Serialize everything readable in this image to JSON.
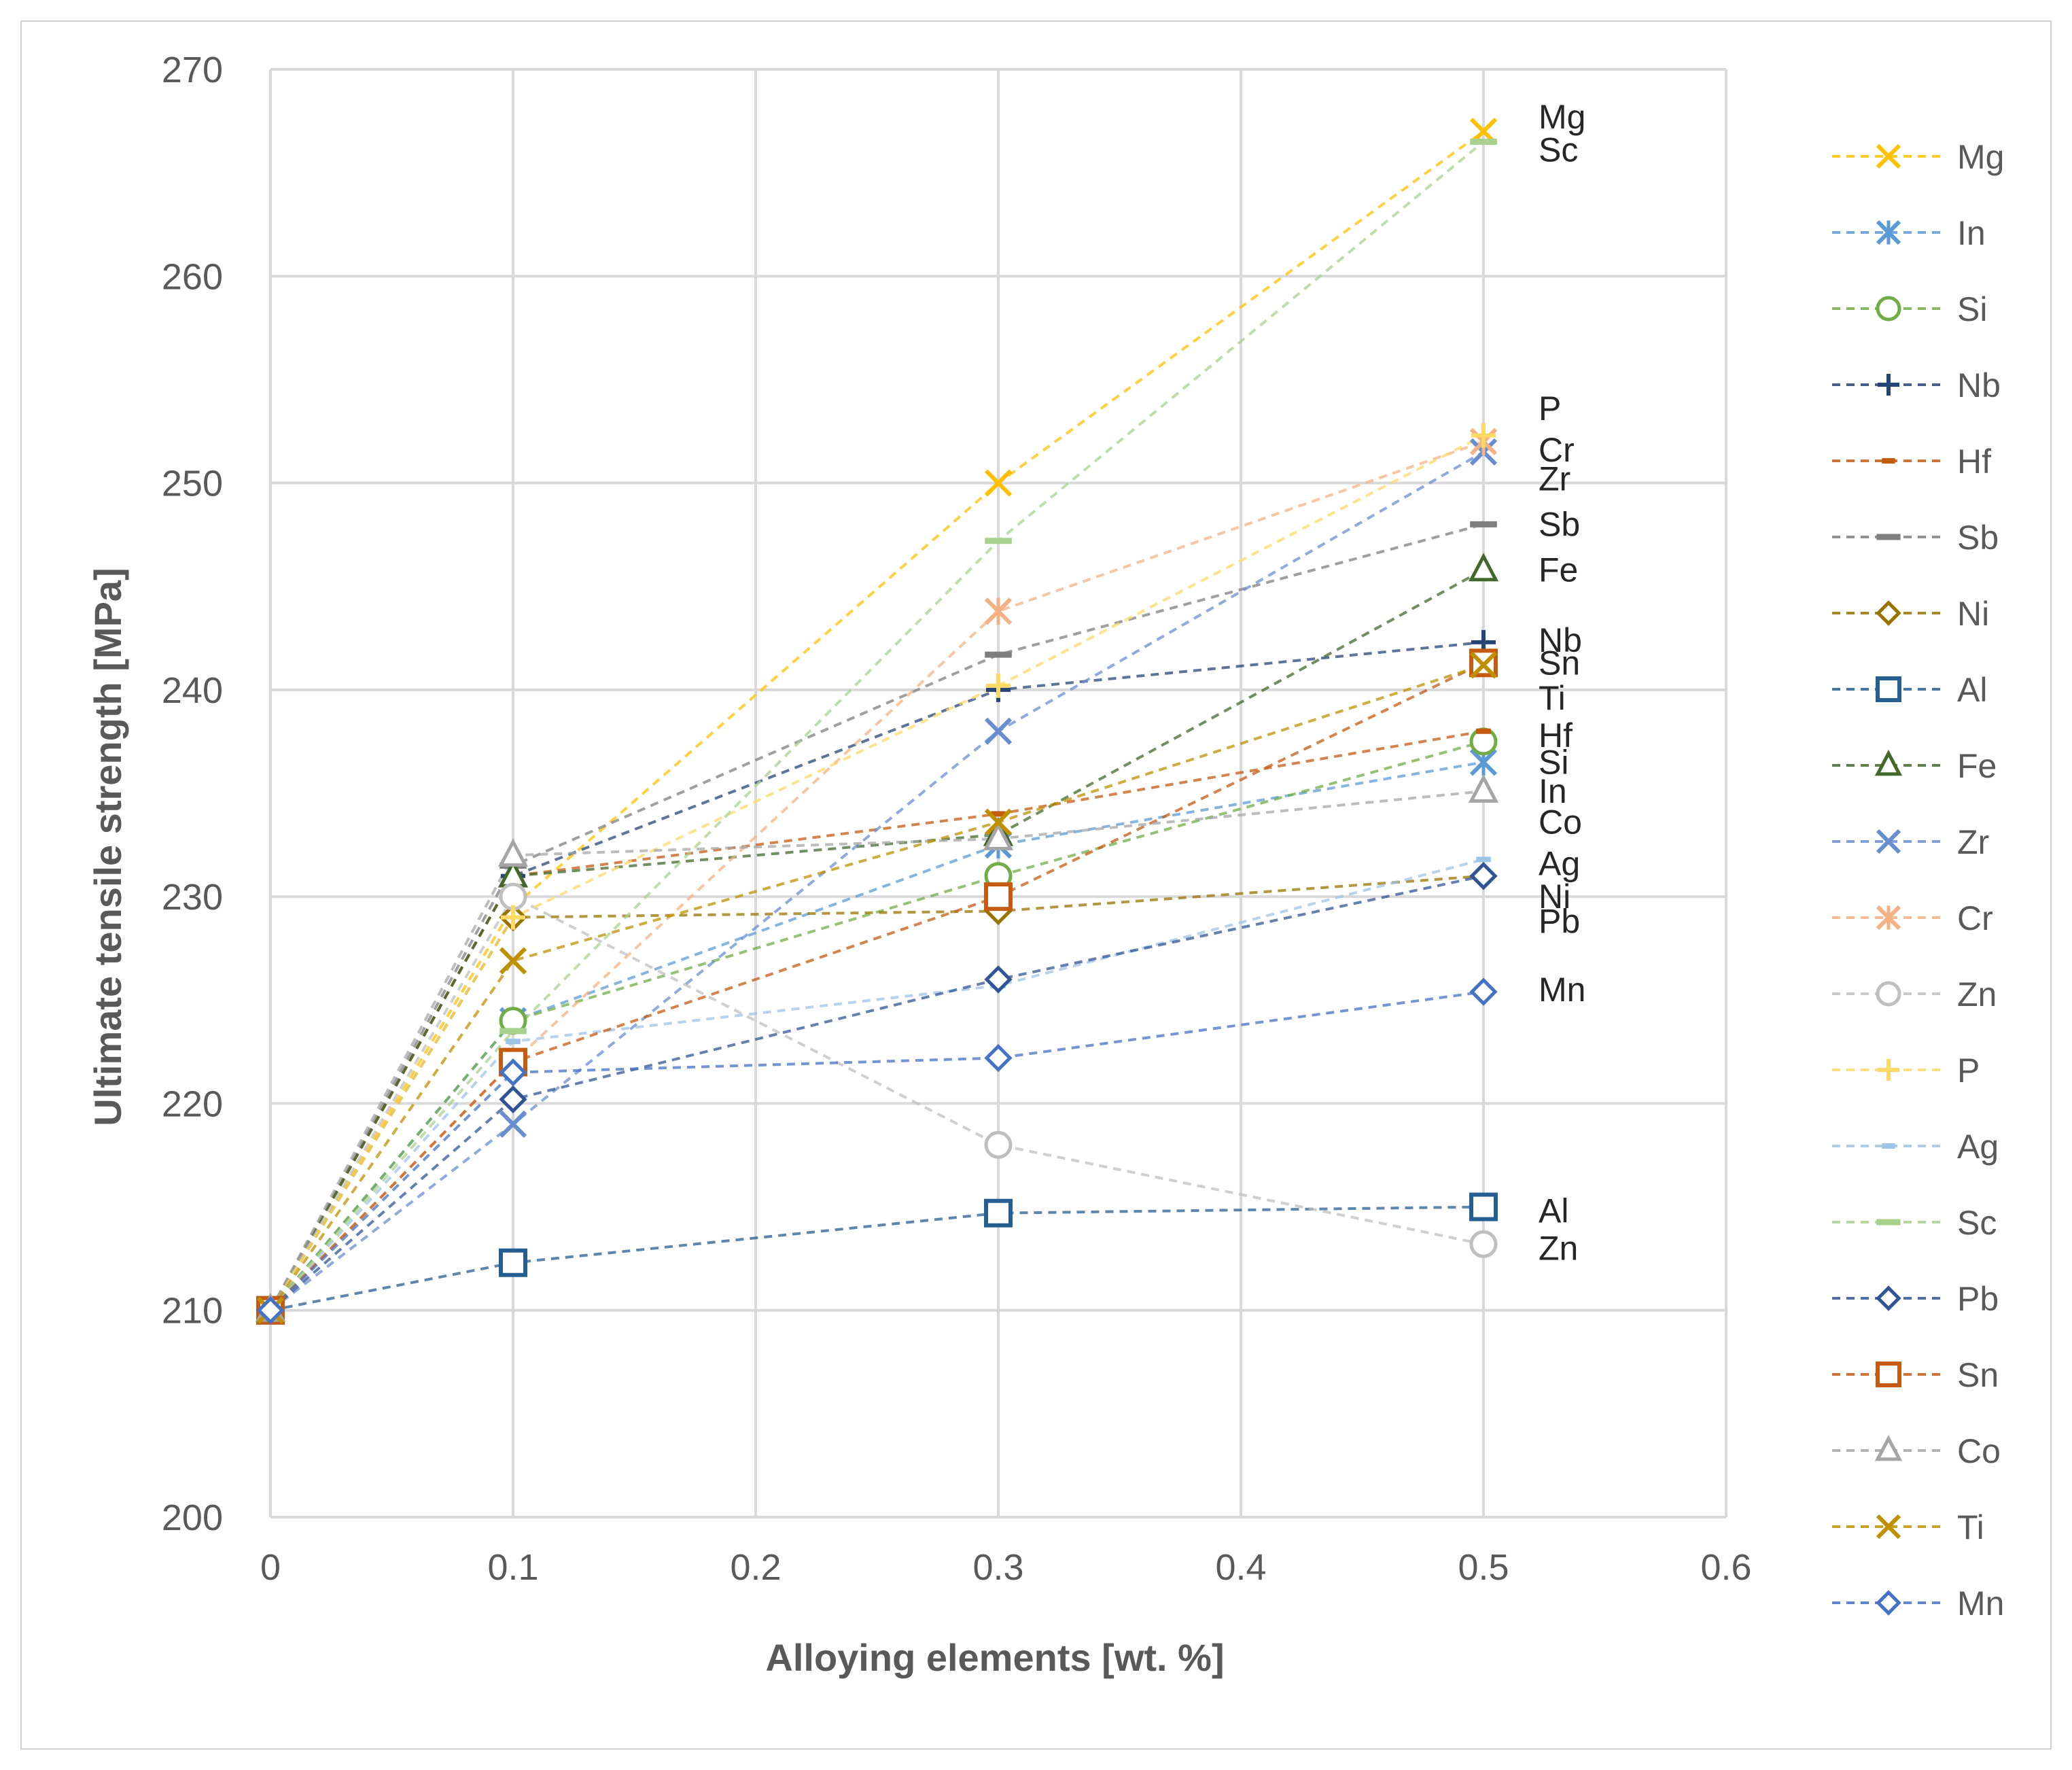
{
  "chart_data": {
    "type": "line",
    "title": "",
    "xlabel": "Alloying elements [wt. %]",
    "ylabel": "Ultimate tensile strength [MPa]",
    "xlim": [
      0,
      0.6
    ],
    "ylim": [
      200,
      270
    ],
    "x_ticks": [
      0,
      0.1,
      0.2,
      0.3,
      0.4,
      0.5,
      0.6
    ],
    "x_tick_labels": [
      "0",
      "0.1",
      "0.2",
      "0.3",
      "0.4",
      "0.5",
      "0.6"
    ],
    "y_ticks": [
      200,
      210,
      220,
      230,
      240,
      250,
      260,
      270
    ],
    "y_tick_labels": [
      "200",
      "210",
      "220",
      "230",
      "240",
      "250",
      "260",
      "270"
    ],
    "grid": true,
    "legend_position": "right",
    "x": [
      0,
      0.1,
      0.3,
      0.5
    ],
    "series": [
      {
        "name": "Mg",
        "values": [
          210,
          229.5,
          250,
          267
        ],
        "color": "#FFC000",
        "marker": "x"
      },
      {
        "name": "In",
        "values": [
          210,
          224,
          232.5,
          236.5
        ],
        "color": "#5B9BD5",
        "marker": "asterisk"
      },
      {
        "name": "Si",
        "values": [
          210,
          224,
          231,
          237.5
        ],
        "color": "#70AD47",
        "marker": "circle"
      },
      {
        "name": "Nb",
        "values": [
          210,
          231,
          240,
          242.3
        ],
        "color": "#264478",
        "marker": "plus"
      },
      {
        "name": "Hf",
        "values": [
          210,
          231,
          234,
          238
        ],
        "color": "#C55A11",
        "marker": "dash-small"
      },
      {
        "name": "Sb",
        "values": [
          210,
          231.5,
          241.7,
          248
        ],
        "color": "#7F7F7F",
        "marker": "dash"
      },
      {
        "name": "Ni",
        "values": [
          210,
          229,
          229.3,
          231
        ],
        "color": "#997300",
        "marker": "diamond"
      },
      {
        "name": "Al",
        "values": [
          210,
          212.3,
          214.7,
          215
        ],
        "color": "#255E91",
        "marker": "square"
      },
      {
        "name": "Fe",
        "values": [
          210,
          231,
          233,
          245.8
        ],
        "color": "#43682B",
        "marker": "triangle"
      },
      {
        "name": "Zr",
        "values": [
          210,
          219,
          238,
          251.5
        ],
        "color": "#698ED0",
        "marker": "x"
      },
      {
        "name": "Cr",
        "values": [
          210,
          222,
          243.8,
          252
        ],
        "color": "#F4B183",
        "marker": "asterisk"
      },
      {
        "name": "Zn",
        "values": [
          210,
          230,
          218,
          213.2
        ],
        "color": "#BFBFBF",
        "marker": "circle"
      },
      {
        "name": "P",
        "values": [
          210,
          229,
          240.2,
          252.3
        ],
        "color": "#FFD966",
        "marker": "plus"
      },
      {
        "name": "Ag",
        "values": [
          210,
          223,
          225.7,
          231.8
        ],
        "color": "#9DC3E6",
        "marker": "dash-small"
      },
      {
        "name": "Sc",
        "values": [
          210,
          223.5,
          247.2,
          266.5
        ],
        "color": "#A9D18E",
        "marker": "dash"
      },
      {
        "name": "Pb",
        "values": [
          210,
          220.2,
          226,
          231
        ],
        "color": "#2F5597",
        "marker": "diamond"
      },
      {
        "name": "Sn",
        "values": [
          210,
          222,
          230,
          241.3
        ],
        "color": "#C55A11",
        "marker": "square"
      },
      {
        "name": "Co",
        "values": [
          210,
          232,
          232.8,
          235.1
        ],
        "color": "#A5A5A5",
        "marker": "triangle"
      },
      {
        "name": "Ti",
        "values": [
          210,
          226.9,
          233.6,
          241.2
        ],
        "color": "#BF9000",
        "marker": "x"
      },
      {
        "name": "Mn",
        "values": [
          210,
          221.5,
          222.2,
          225.4
        ],
        "color": "#4472C4",
        "marker": "diamond"
      }
    ],
    "end_labels": [
      {
        "text": "Mg",
        "at_value": 267.7
      },
      {
        "text": "Sc",
        "at_value": 266.1
      },
      {
        "text": "P",
        "at_value": 253.6
      },
      {
        "text": "Cr",
        "at_value": 251.6
      },
      {
        "text": "Zr",
        "at_value": 250.2
      },
      {
        "text": "Sb",
        "at_value": 248.0
      },
      {
        "text": "Fe",
        "at_value": 245.8
      },
      {
        "text": "Nb",
        "at_value": 242.4
      },
      {
        "text": "Sn",
        "at_value": 241.3
      },
      {
        "text": "Ti",
        "at_value": 239.6
      },
      {
        "text": "Hf",
        "at_value": 237.8
      },
      {
        "text": "Si",
        "at_value": 236.5
      },
      {
        "text": "In",
        "at_value": 235.1
      },
      {
        "text": "Co",
        "at_value": 233.6
      },
      {
        "text": "Ag",
        "at_value": 231.6
      },
      {
        "text": "Ni",
        "at_value": 230.0
      },
      {
        "text": "Pb",
        "at_value": 228.8
      },
      {
        "text": "Mn",
        "at_value": 225.5
      },
      {
        "text": "Al",
        "at_value": 214.8
      },
      {
        "text": "Zn",
        "at_value": 213.0
      }
    ]
  }
}
